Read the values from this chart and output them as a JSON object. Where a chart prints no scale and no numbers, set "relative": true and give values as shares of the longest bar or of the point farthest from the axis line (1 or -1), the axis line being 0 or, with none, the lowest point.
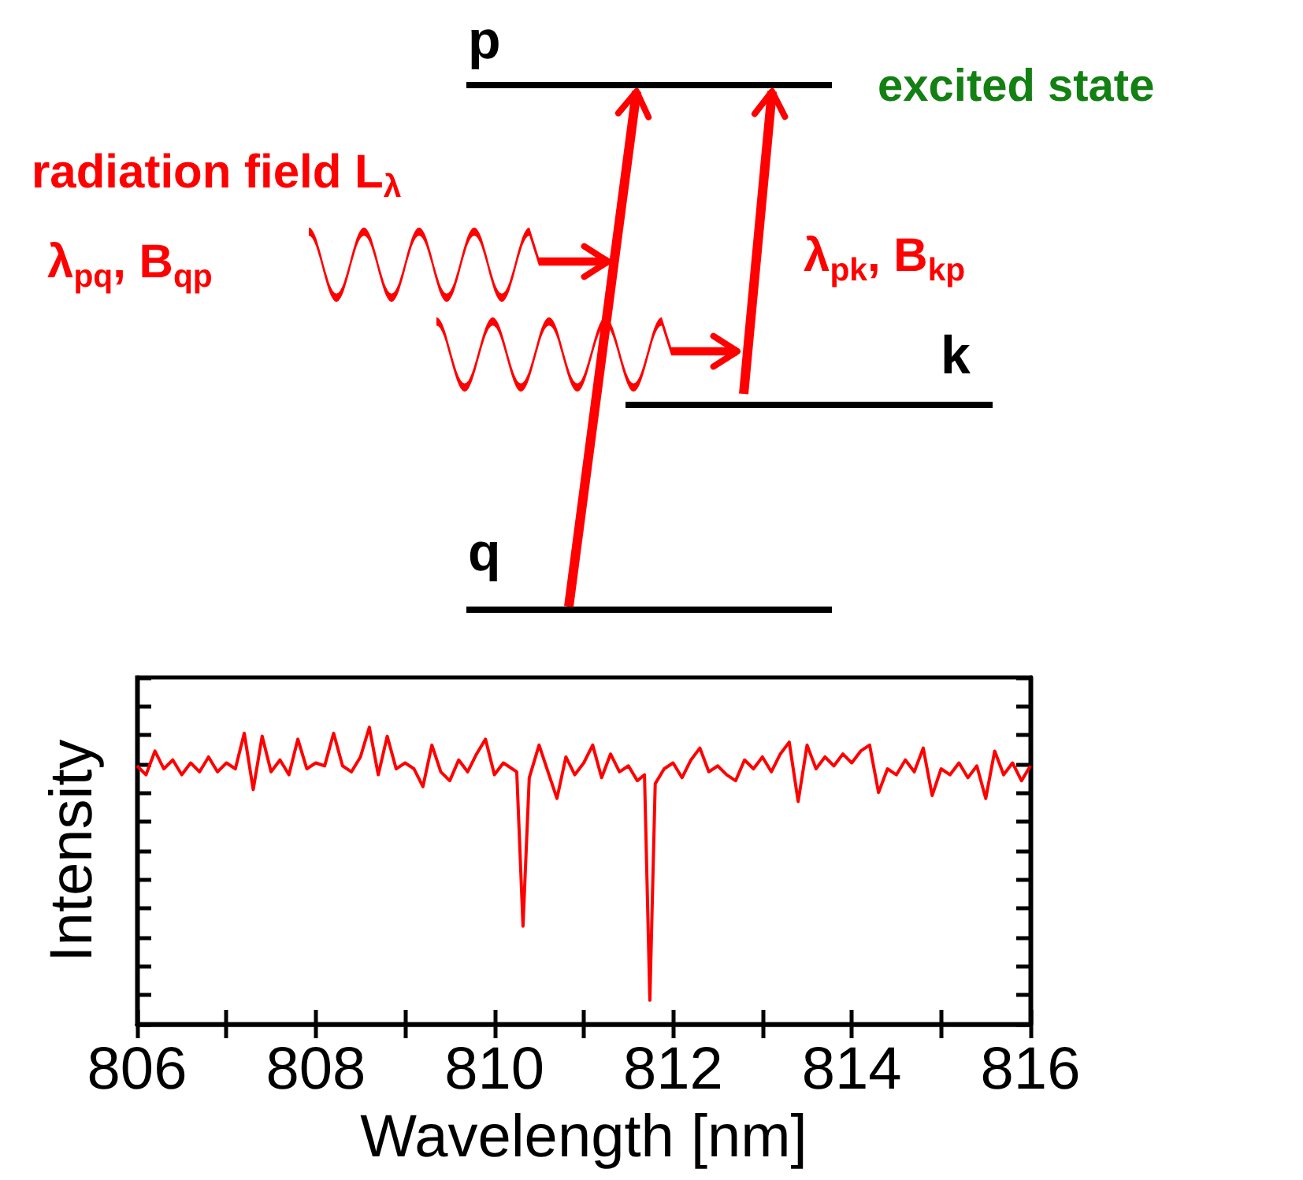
{
  "chart_data": [
    {
      "type": "other",
      "annotations": [
        "p",
        "k",
        "q",
        "excited state",
        "radiation field L$_{λ}$",
        "λ$_{pq}$, B$_{qp}$",
        "λ$_{pk}$, B$_{kp}$"
      ]
    },
    {
      "type": "line",
      "xlabel": "Wavelength [nm]",
      "ylabel": "Intensity",
      "relative": true,
      "tick_labels": "x",
      "xlim": [
        806,
        816
      ],
      "xticks": [
        806,
        {
          "value": 807,
          "label": null
        },
        808,
        {
          "value": 809,
          "label": null
        },
        810,
        {
          "value": 811,
          "label": null
        },
        812,
        {
          "value": 813,
          "label": null
        },
        814,
        {
          "value": 815,
          "label": null
        },
        816
      ],
      "x": [
        806.0,
        806.1,
        806.2,
        806.3,
        806.4,
        806.5,
        806.6,
        806.7,
        806.8,
        806.9,
        807.0,
        807.1,
        807.2,
        807.3,
        807.4,
        807.5,
        807.6,
        807.7,
        807.8,
        807.9,
        808.0,
        808.1,
        808.2,
        808.3,
        808.4,
        808.5,
        808.6,
        808.7,
        808.8,
        808.9,
        809.0,
        809.1,
        809.2,
        809.3,
        809.4,
        809.5,
        809.6,
        809.7,
        809.8,
        809.9,
        810.0,
        810.1,
        810.2,
        810.25,
        810.32,
        810.39,
        810.5,
        810.6,
        810.7,
        810.8,
        810.9,
        811.0,
        811.1,
        811.2,
        811.3,
        811.4,
        811.5,
        811.6,
        811.68,
        811.74,
        811.8,
        811.9,
        812.0,
        812.1,
        812.2,
        812.3,
        812.4,
        812.5,
        812.6,
        812.7,
        812.8,
        812.9,
        813.0,
        813.1,
        813.2,
        813.3,
        813.4,
        813.5,
        813.6,
        813.7,
        813.8,
        813.9,
        814.0,
        814.1,
        814.2,
        814.3,
        814.4,
        814.5,
        814.6,
        814.7,
        814.8,
        814.9,
        815.0,
        815.1,
        815.2,
        815.3,
        815.4,
        815.5,
        815.6,
        815.7,
        815.8,
        815.9,
        816.0
      ],
      "series": [
        {
          "color": "#ff0000",
          "values": [
            0.87,
            0.84,
            0.92,
            0.86,
            0.89,
            0.84,
            0.88,
            0.85,
            0.9,
            0.85,
            0.88,
            0.86,
            0.98,
            0.79,
            0.97,
            0.85,
            0.89,
            0.84,
            0.96,
            0.86,
            0.88,
            0.87,
            0.98,
            0.87,
            0.85,
            0.9,
            1.0,
            0.84,
            0.97,
            0.86,
            0.88,
            0.86,
            0.8,
            0.94,
            0.85,
            0.82,
            0.89,
            0.85,
            0.91,
            0.96,
            0.84,
            0.88,
            0.86,
            0.85,
            0.33,
            0.83,
            0.94,
            0.85,
            0.76,
            0.9,
            0.84,
            0.88,
            0.94,
            0.83,
            0.91,
            0.85,
            0.87,
            0.82,
            0.84,
            0.08,
            0.81,
            0.86,
            0.88,
            0.83,
            0.89,
            0.93,
            0.85,
            0.87,
            0.84,
            0.82,
            0.89,
            0.86,
            0.9,
            0.85,
            0.91,
            0.95,
            0.75,
            0.94,
            0.86,
            0.9,
            0.87,
            0.91,
            0.88,
            0.92,
            0.94,
            0.78,
            0.86,
            0.84,
            0.89,
            0.85,
            0.93,
            0.77,
            0.86,
            0.84,
            0.88,
            0.83,
            0.87,
            0.76,
            0.92,
            0.84,
            0.88,
            0.82,
            0.87
          ]
        }
      ]
    }
  ]
}
